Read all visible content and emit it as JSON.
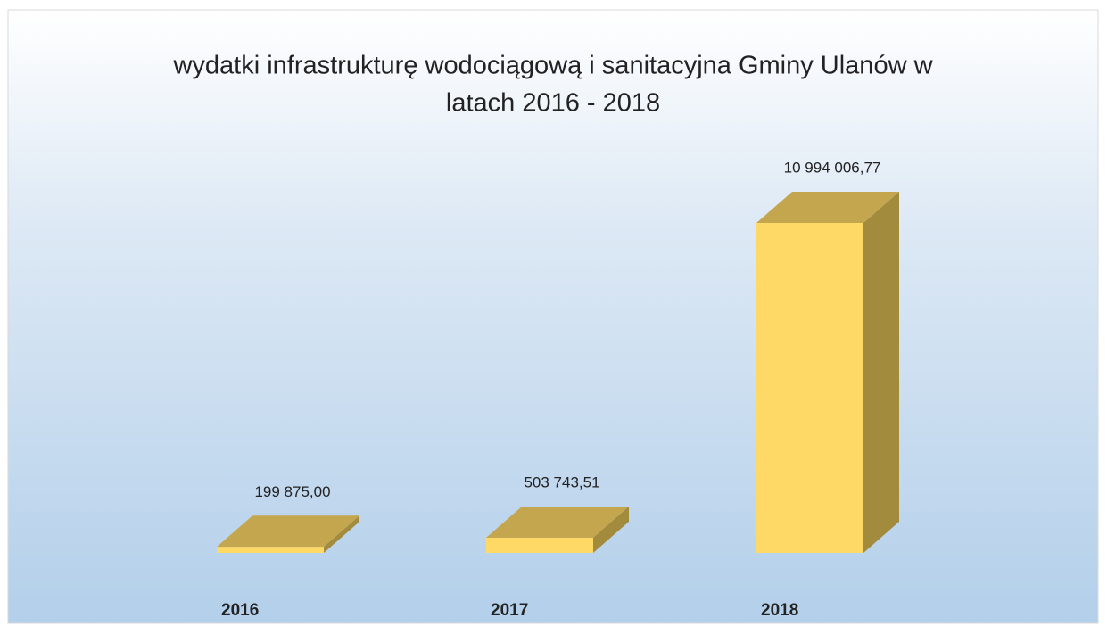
{
  "chart_data": {
    "type": "bar3d",
    "title": [
      "wydatki infrastrukturę wodociągową i sanitacyjna Gminy Ulanów w",
      "latach 2016 - 2018"
    ],
    "categories": [
      "2016",
      "2017",
      "2018"
    ],
    "values": [
      199875.0,
      503743.51,
      10994006.77
    ],
    "value_labels": [
      "199 875,00",
      "503 743,51",
      "10 994 006,77"
    ],
    "color": "#ffd966",
    "top_color": "#c4a64e",
    "side_color": "#a38b3e"
  }
}
